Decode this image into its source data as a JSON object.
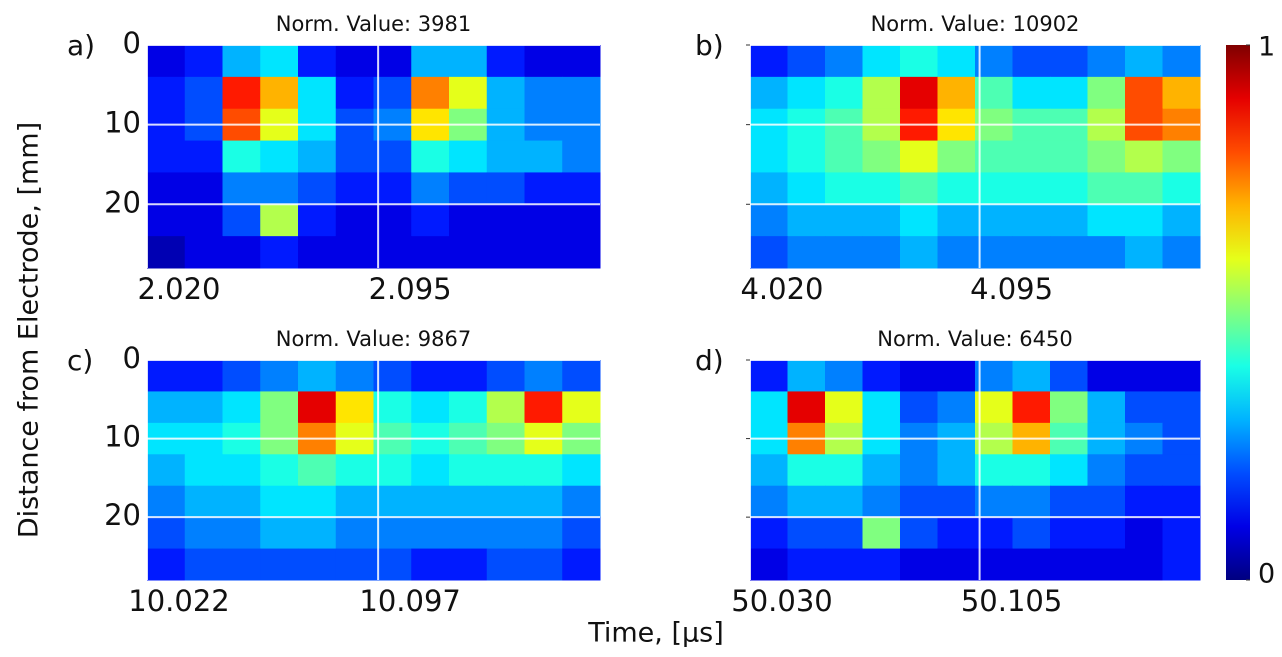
{
  "ylabel": "Distance from Electrode, [mm]",
  "xlabel": "Time, [µs]",
  "colorbar": {
    "colormap": "jet",
    "zlim": [
      0,
      1
    ],
    "zticks": [
      1,
      0
    ]
  },
  "chart_data": [
    {
      "type": "heatmap",
      "panel_label": "a)",
      "title": "Norm. Value: 3981",
      "colormap": "jet",
      "xlim": [
        2.02,
        2.167
      ],
      "xticks": [
        {
          "value": 2.02,
          "label": "2.020"
        },
        {
          "value": 2.095,
          "label": "2.095"
        }
      ],
      "ylim": [
        28,
        0
      ],
      "yticks": [
        0,
        10,
        20
      ],
      "ytick_labels": true,
      "grid": true,
      "grid_color": "#ffffff",
      "z": [
        [
          0.1,
          0.15,
          0.3,
          0.35,
          0.15,
          0.1,
          0.1,
          0.3,
          0.3,
          0.15,
          0.1,
          0.1
        ],
        [
          0.15,
          0.2,
          0.85,
          0.7,
          0.35,
          0.15,
          0.2,
          0.75,
          0.6,
          0.3,
          0.25,
          0.25
        ],
        [
          0.15,
          0.2,
          0.8,
          0.6,
          0.35,
          0.2,
          0.25,
          0.65,
          0.5,
          0.3,
          0.25,
          0.25
        ],
        [
          0.15,
          0.15,
          0.4,
          0.35,
          0.3,
          0.2,
          0.2,
          0.4,
          0.35,
          0.3,
          0.3,
          0.25
        ],
        [
          0.1,
          0.1,
          0.25,
          0.25,
          0.2,
          0.15,
          0.15,
          0.25,
          0.2,
          0.2,
          0.15,
          0.15
        ],
        [
          0.1,
          0.1,
          0.2,
          0.55,
          0.15,
          0.1,
          0.1,
          0.15,
          0.1,
          0.1,
          0.1,
          0.1
        ],
        [
          0.05,
          0.1,
          0.1,
          0.15,
          0.1,
          0.1,
          0.1,
          0.1,
          0.1,
          0.1,
          0.1,
          0.1
        ]
      ]
    },
    {
      "type": "heatmap",
      "panel_label": "b)",
      "title": "Norm. Value: 10902",
      "colormap": "jet",
      "xlim": [
        4.02,
        4.167
      ],
      "xticks": [
        {
          "value": 4.02,
          "label": "4.020"
        },
        {
          "value": 4.095,
          "label": "4.095"
        }
      ],
      "ylim": [
        28,
        0
      ],
      "yticks": [
        0,
        10,
        20
      ],
      "ytick_labels": false,
      "grid": true,
      "grid_color": "#ffffff",
      "z": [
        [
          0.15,
          0.2,
          0.25,
          0.35,
          0.4,
          0.35,
          0.25,
          0.2,
          0.2,
          0.25,
          0.3,
          0.25
        ],
        [
          0.3,
          0.35,
          0.4,
          0.55,
          0.9,
          0.7,
          0.45,
          0.35,
          0.35,
          0.5,
          0.8,
          0.7
        ],
        [
          0.35,
          0.4,
          0.45,
          0.55,
          0.85,
          0.65,
          0.5,
          0.45,
          0.45,
          0.55,
          0.8,
          0.75
        ],
        [
          0.35,
          0.4,
          0.45,
          0.5,
          0.6,
          0.5,
          0.45,
          0.45,
          0.45,
          0.5,
          0.55,
          0.5
        ],
        [
          0.3,
          0.35,
          0.4,
          0.4,
          0.45,
          0.4,
          0.4,
          0.4,
          0.4,
          0.45,
          0.45,
          0.4
        ],
        [
          0.25,
          0.3,
          0.3,
          0.3,
          0.35,
          0.3,
          0.3,
          0.3,
          0.3,
          0.35,
          0.35,
          0.3
        ],
        [
          0.2,
          0.25,
          0.25,
          0.25,
          0.3,
          0.25,
          0.25,
          0.25,
          0.25,
          0.25,
          0.3,
          0.25
        ]
      ]
    },
    {
      "type": "heatmap",
      "panel_label": "c)",
      "title": "Norm. Value: 9867",
      "colormap": "jet",
      "xlim": [
        10.022,
        10.169
      ],
      "xticks": [
        {
          "value": 10.022,
          "label": "10.022"
        },
        {
          "value": 10.097,
          "label": "10.097"
        }
      ],
      "ylim": [
        28,
        0
      ],
      "yticks": [
        0,
        10,
        20
      ],
      "ytick_labels": true,
      "grid": true,
      "grid_color": "#ffffff",
      "z": [
        [
          0.15,
          0.15,
          0.2,
          0.25,
          0.3,
          0.25,
          0.2,
          0.15,
          0.15,
          0.2,
          0.25,
          0.2
        ],
        [
          0.3,
          0.3,
          0.35,
          0.5,
          0.9,
          0.65,
          0.4,
          0.35,
          0.4,
          0.55,
          0.85,
          0.6
        ],
        [
          0.35,
          0.35,
          0.4,
          0.5,
          0.75,
          0.6,
          0.45,
          0.4,
          0.45,
          0.5,
          0.6,
          0.5
        ],
        [
          0.3,
          0.35,
          0.35,
          0.4,
          0.45,
          0.4,
          0.4,
          0.35,
          0.4,
          0.4,
          0.4,
          0.35
        ],
        [
          0.25,
          0.3,
          0.3,
          0.35,
          0.35,
          0.3,
          0.3,
          0.3,
          0.3,
          0.3,
          0.3,
          0.25
        ],
        [
          0.2,
          0.25,
          0.25,
          0.3,
          0.3,
          0.25,
          0.25,
          0.25,
          0.25,
          0.25,
          0.25,
          0.2
        ],
        [
          0.15,
          0.2,
          0.2,
          0.2,
          0.2,
          0.2,
          0.2,
          0.15,
          0.15,
          0.2,
          0.2,
          0.15
        ]
      ]
    },
    {
      "type": "heatmap",
      "panel_label": "d)",
      "title": "Norm. Value: 6450",
      "colormap": "jet",
      "xlim": [
        50.03,
        50.177
      ],
      "xticks": [
        {
          "value": 50.03,
          "label": "50.030"
        },
        {
          "value": 50.105,
          "label": "50.105"
        }
      ],
      "ylim": [
        28,
        0
      ],
      "yticks": [
        0,
        10,
        20
      ],
      "ytick_labels": false,
      "grid": true,
      "grid_color": "#ffffff",
      "z": [
        [
          0.15,
          0.3,
          0.25,
          0.15,
          0.1,
          0.1,
          0.25,
          0.3,
          0.2,
          0.1,
          0.1,
          0.1
        ],
        [
          0.35,
          0.9,
          0.6,
          0.35,
          0.2,
          0.25,
          0.6,
          0.85,
          0.5,
          0.3,
          0.2,
          0.2
        ],
        [
          0.35,
          0.75,
          0.55,
          0.35,
          0.25,
          0.3,
          0.55,
          0.7,
          0.45,
          0.3,
          0.25,
          0.2
        ],
        [
          0.3,
          0.4,
          0.4,
          0.3,
          0.25,
          0.3,
          0.4,
          0.4,
          0.35,
          0.25,
          0.2,
          0.2
        ],
        [
          0.25,
          0.3,
          0.3,
          0.25,
          0.2,
          0.2,
          0.25,
          0.25,
          0.2,
          0.2,
          0.15,
          0.15
        ],
        [
          0.15,
          0.2,
          0.2,
          0.5,
          0.2,
          0.15,
          0.15,
          0.2,
          0.15,
          0.15,
          0.1,
          0.15
        ],
        [
          0.1,
          0.15,
          0.15,
          0.15,
          0.1,
          0.1,
          0.1,
          0.1,
          0.1,
          0.1,
          0.1,
          0.15
        ]
      ]
    }
  ]
}
